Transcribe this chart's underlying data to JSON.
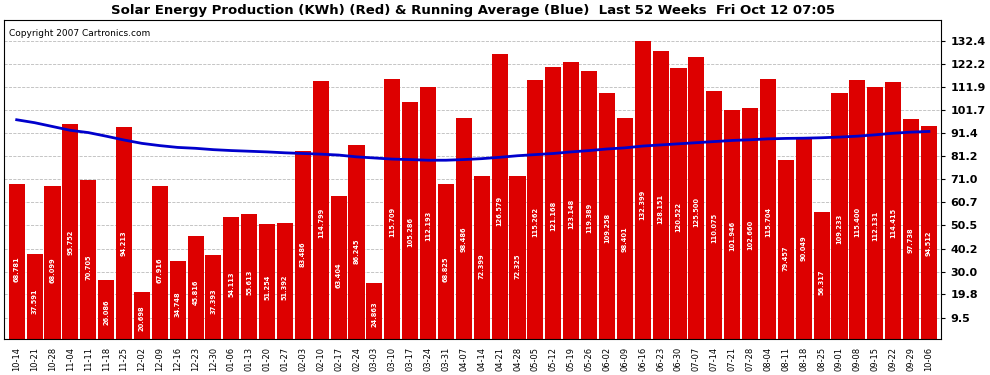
{
  "title": "Solar Energy Production (KWh) (Red) & Running Average (Blue)  Last 52 Weeks  Fri Oct 12 07:05",
  "copyright": "Copyright 2007 Cartronics.com",
  "bar_color": "#dd0000",
  "line_color": "#0000cc",
  "bg_color": "#ffffff",
  "grid_color": "#bbbbbb",
  "yticks_right": [
    9.5,
    19.8,
    30.0,
    40.2,
    50.5,
    60.7,
    71.0,
    81.2,
    91.4,
    101.7,
    111.9,
    122.2,
    132.4
  ],
  "categories": [
    "10-14",
    "10-21",
    "10-28",
    "11-04",
    "11-11",
    "11-18",
    "11-25",
    "12-02",
    "12-09",
    "12-16",
    "12-23",
    "12-30",
    "01-06",
    "01-13",
    "01-20",
    "01-27",
    "02-03",
    "02-10",
    "02-17",
    "02-24",
    "03-03",
    "03-10",
    "03-17",
    "03-24",
    "03-31",
    "04-07",
    "04-14",
    "04-21",
    "04-28",
    "05-05",
    "05-12",
    "05-19",
    "05-26",
    "06-02",
    "06-09",
    "06-16",
    "06-23",
    "06-30",
    "07-07",
    "07-14",
    "07-21",
    "07-28",
    "08-04",
    "08-11",
    "08-18",
    "08-25",
    "09-01",
    "09-08",
    "09-15",
    "09-22",
    "09-29",
    "10-06"
  ],
  "values": [
    68.781,
    37.591,
    68.099,
    95.752,
    70.705,
    26.086,
    94.213,
    20.698,
    67.916,
    34.748,
    45.816,
    37.393,
    54.113,
    55.613,
    51.254,
    51.392,
    83.486,
    114.799,
    63.404,
    86.245,
    24.863,
    115.709,
    105.286,
    112.193,
    68.825,
    98.486,
    72.399,
    126.579,
    72.325,
    115.262,
    121.168,
    123.148,
    119.389,
    109.258,
    98.401,
    132.399,
    128.151,
    120.522,
    125.5,
    110.075,
    101.946,
    102.66,
    115.704,
    79.457,
    90.049,
    56.317,
    109.233,
    115.4,
    112.131,
    114.415,
    97.738,
    94.512
  ],
  "avg_values": [
    97.5,
    96.2,
    94.5,
    92.8,
    91.8,
    90.2,
    88.5,
    87.0,
    86.0,
    85.2,
    84.8,
    84.2,
    83.8,
    83.5,
    83.2,
    82.8,
    82.5,
    82.2,
    81.8,
    81.0,
    80.5,
    80.0,
    79.8,
    79.5,
    79.5,
    79.8,
    80.2,
    80.8,
    81.5,
    82.0,
    82.5,
    83.2,
    83.8,
    84.5,
    85.0,
    85.8,
    86.3,
    86.8,
    87.3,
    87.8,
    88.3,
    88.6,
    89.0,
    89.2,
    89.3,
    89.5,
    89.8,
    90.2,
    90.8,
    91.5,
    92.0,
    92.3
  ]
}
